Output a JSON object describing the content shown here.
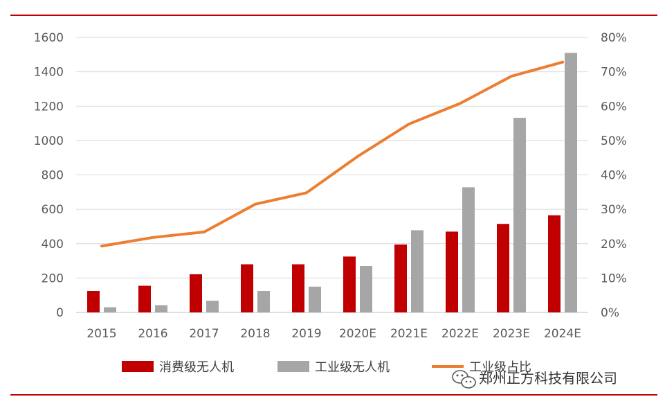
{
  "colors": {
    "consumer": "#c00000",
    "industrial": "#a6a6a6",
    "share_line": "#ed7d31",
    "rule": "#c00000",
    "grid": "#d9d9d9",
    "axis_text": "#595959"
  },
  "chart_data": {
    "type": "bar",
    "title": "",
    "categories": [
      "2015",
      "2016",
      "2017",
      "2018",
      "2019",
      "2020E",
      "2021E",
      "2022E",
      "2023E",
      "2024E"
    ],
    "series": [
      {
        "name": "消费级无人机",
        "type": "bar",
        "axis": "left",
        "color": "#c00000",
        "values": [
          125,
          155,
          222,
          280,
          280,
          325,
          395,
          470,
          515,
          565
        ]
      },
      {
        "name": "工业级无人机",
        "type": "bar",
        "axis": "left",
        "color": "#a6a6a6",
        "values": [
          30,
          42,
          68,
          125,
          150,
          270,
          478,
          728,
          1132,
          1510
        ]
      },
      {
        "name": "工业级占比",
        "type": "line",
        "axis": "right",
        "color": "#ed7d31",
        "values": [
          19.3,
          21.8,
          23.4,
          31.5,
          34.8,
          45.4,
          54.8,
          60.8,
          68.7,
          72.8
        ]
      }
    ],
    "y_left": {
      "min": 0,
      "max": 1600,
      "ticks": [
        "0",
        "200",
        "400",
        "600",
        "800",
        "1000",
        "1200",
        "1400",
        "1600"
      ]
    },
    "y_right": {
      "min": 0,
      "max": 80,
      "ticks": [
        "0%",
        "10%",
        "20%",
        "30%",
        "40%",
        "50%",
        "60%",
        "70%",
        "80%"
      ]
    },
    "xlabel": "",
    "ylabel": "",
    "grid": true,
    "legend_position": "bottom-center"
  },
  "watermark": {
    "text": "郑州正方科技有限公司",
    "icon": "wechat-icon"
  }
}
